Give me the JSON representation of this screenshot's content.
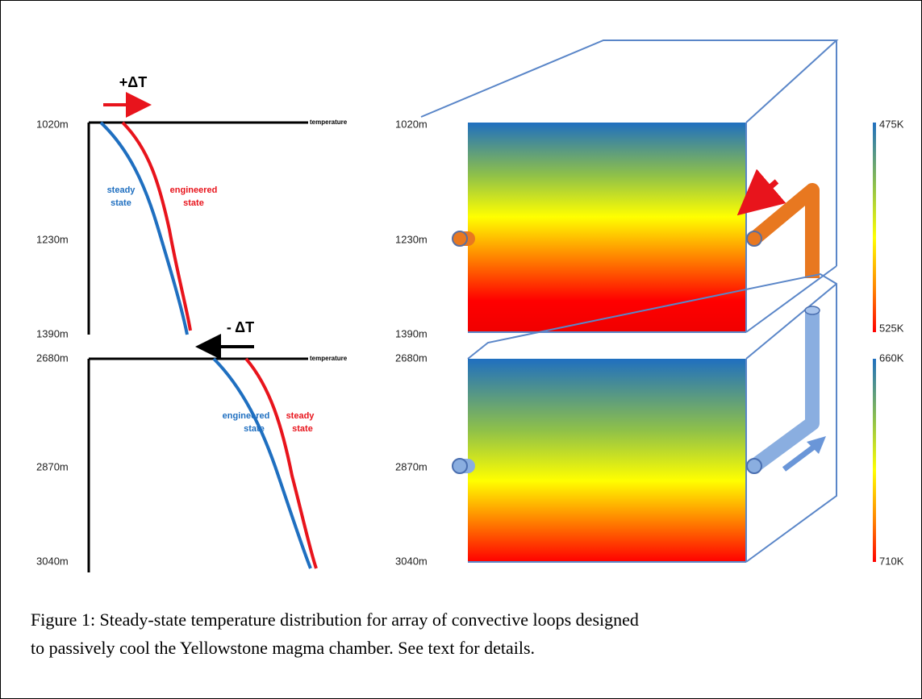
{
  "left_panel": {
    "top": {
      "depths": [
        "1020m",
        "1230m",
        "1390m"
      ],
      "axis_label": "temperature",
      "delta": "+ΔT",
      "curve_labels": {
        "steady": [
          "steady",
          "state"
        ],
        "engineered": [
          "engineered",
          "state"
        ]
      }
    },
    "bottom": {
      "depths": [
        "2680m",
        "2870m",
        "3040m"
      ],
      "axis_label": "temperature",
      "delta": "- ΔT",
      "curve_labels": {
        "steady": [
          "steady",
          "state"
        ],
        "engineered": [
          "engineered",
          "state"
        ]
      }
    }
  },
  "right_panel": {
    "top": {
      "depths": [
        "1020m",
        "1230m",
        "1390m"
      ],
      "colorbar": [
        "475K",
        "525K"
      ]
    },
    "bottom": {
      "depths": [
        "2680m",
        "2870m",
        "3040m"
      ],
      "colorbar": [
        "660K",
        "710K"
      ]
    }
  },
  "caption": {
    "lines": [
      "Figure 1: Steady-state temperature distribution for array of convective loops designed",
      "to passively cool the Yellowstone magma chamber.  See text for details."
    ]
  }
}
